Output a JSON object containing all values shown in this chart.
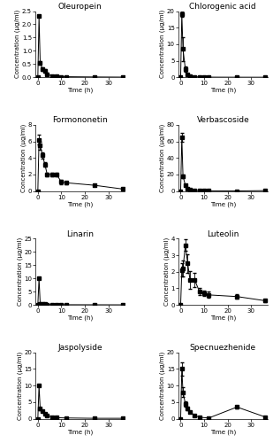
{
  "panels": [
    {
      "title": "Oleuropein",
      "ylabel": "Concentration (μg/ml)",
      "xlabel": "Time (h)",
      "ylim": [
        0,
        2.5
      ],
      "yticks": [
        0.0,
        0.5,
        1.0,
        1.5,
        2.0,
        2.5
      ],
      "xticks": [
        0,
        10,
        20,
        30
      ],
      "xlim": [
        -1,
        37
      ],
      "time": [
        0,
        0.5,
        1,
        2,
        3,
        4,
        6,
        8,
        10,
        12,
        24,
        36
      ],
      "mean": [
        0.0,
        2.3,
        0.55,
        0.3,
        0.25,
        0.12,
        0.05,
        0.03,
        0.02,
        0.02,
        0.01,
        0.005
      ],
      "sd": [
        0.0,
        0.0,
        0.06,
        0.07,
        0.07,
        0.05,
        0.02,
        0.01,
        0.005,
        0.005,
        0.005,
        0.0
      ]
    },
    {
      "title": "Chlorogenic acid",
      "ylabel": "Concentration (μg/ml)",
      "xlabel": "Time (h)",
      "ylim": [
        0,
        20
      ],
      "yticks": [
        0,
        5,
        10,
        15,
        20
      ],
      "xticks": [
        0,
        10,
        20,
        30
      ],
      "xlim": [
        -1,
        37
      ],
      "time": [
        0,
        0.5,
        1,
        2,
        3,
        4,
        6,
        8,
        10,
        12,
        24,
        36
      ],
      "mean": [
        0.0,
        19.0,
        8.5,
        2.5,
        0.8,
        0.35,
        0.15,
        0.08,
        0.05,
        0.03,
        0.01,
        0.005
      ],
      "sd": [
        0.0,
        0.8,
        3.5,
        0.8,
        0.2,
        0.08,
        0.04,
        0.02,
        0.01,
        0.01,
        0.005,
        0.002
      ]
    },
    {
      "title": "Formononetin",
      "ylabel": "Concentration (μg/ml)",
      "xlabel": "Time (h)",
      "ylim": [
        0,
        8
      ],
      "yticks": [
        0,
        2,
        4,
        6,
        8
      ],
      "xticks": [
        0,
        10,
        20,
        30
      ],
      "xlim": [
        -1,
        37
      ],
      "time": [
        0,
        0.5,
        1,
        2,
        3,
        4,
        6,
        8,
        10,
        12,
        24,
        36
      ],
      "mean": [
        0.0,
        6.2,
        5.5,
        4.3,
        3.2,
        2.0,
        2.0,
        2.0,
        1.1,
        1.0,
        0.7,
        0.25
      ],
      "sd": [
        0.0,
        0.6,
        0.5,
        0.4,
        0.25,
        0.2,
        0.2,
        0.2,
        0.3,
        0.15,
        0.1,
        0.05
      ]
    },
    {
      "title": "Verbascoside",
      "ylabel": "Concentration (μg/ml)",
      "xlabel": "Time (h)",
      "ylim": [
        0,
        80
      ],
      "yticks": [
        0,
        20,
        40,
        60,
        80
      ],
      "xticks": [
        0,
        10,
        20,
        30
      ],
      "xlim": [
        -1,
        37
      ],
      "time": [
        0,
        0.5,
        1,
        2,
        3,
        4,
        6,
        8,
        10,
        12,
        24,
        36
      ],
      "mean": [
        0.0,
        65.0,
        18.0,
        7.0,
        3.0,
        1.5,
        0.8,
        0.5,
        0.3,
        0.2,
        0.1,
        0.5
      ],
      "sd": [
        0.0,
        5.0,
        2.0,
        0.8,
        0.4,
        0.2,
        0.1,
        0.08,
        0.05,
        0.04,
        0.03,
        0.15
      ]
    },
    {
      "title": "Linarin",
      "ylabel": "Concentration (μg/ml)",
      "xlabel": "Time (h)",
      "ylim": [
        0,
        25
      ],
      "yticks": [
        0,
        5,
        10,
        15,
        20,
        25
      ],
      "xticks": [
        0,
        10,
        20,
        30
      ],
      "xlim": [
        -1,
        37
      ],
      "time": [
        0,
        0.5,
        1,
        2,
        3,
        4,
        6,
        8,
        10,
        12,
        24,
        36
      ],
      "mean": [
        0.0,
        10.0,
        0.5,
        0.3,
        0.2,
        0.15,
        0.1,
        0.08,
        0.06,
        0.05,
        0.03,
        0.01
      ],
      "sd": [
        0.0,
        0.0,
        0.12,
        0.07,
        0.05,
        0.04,
        0.03,
        0.02,
        0.015,
        0.01,
        0.008,
        0.005
      ]
    },
    {
      "title": "Luteolin",
      "ylabel": "Concentration (μg/ml)",
      "xlabel": "Time (h)",
      "ylim": [
        0,
        4
      ],
      "yticks": [
        0,
        1,
        2,
        3,
        4
      ],
      "xticks": [
        0,
        10,
        20,
        30
      ],
      "xlim": [
        -1,
        37
      ],
      "time": [
        0,
        0.5,
        1,
        2,
        3,
        4,
        6,
        8,
        10,
        12,
        24,
        36
      ],
      "mean": [
        0.0,
        2.1,
        2.2,
        3.6,
        2.5,
        1.5,
        1.5,
        0.8,
        0.7,
        0.6,
        0.5,
        0.25
      ],
      "sd": [
        0.0,
        0.4,
        0.5,
        0.35,
        0.55,
        0.55,
        0.45,
        0.2,
        0.15,
        0.18,
        0.12,
        0.08
      ]
    },
    {
      "title": "Jaspolyside",
      "ylabel": "Concentration (μg/ml)",
      "xlabel": "Time (h)",
      "ylim": [
        0,
        20
      ],
      "yticks": [
        0,
        5,
        10,
        15,
        20
      ],
      "xticks": [
        0,
        10,
        20,
        30
      ],
      "xlim": [
        -1,
        37
      ],
      "time": [
        0,
        0.5,
        1,
        2,
        3,
        4,
        6,
        8,
        12,
        24,
        36
      ],
      "mean": [
        0.0,
        10.0,
        3.0,
        2.3,
        1.5,
        1.0,
        0.5,
        0.3,
        0.2,
        0.1,
        0.1
      ],
      "sd": [
        0.0,
        0.0,
        0.4,
        0.3,
        0.25,
        0.15,
        0.08,
        0.05,
        0.04,
        0.03,
        0.02
      ]
    },
    {
      "title": "Specnuezhenide",
      "ylabel": "Concentration (μg/ml)",
      "xlabel": "Time (h)",
      "ylim": [
        0,
        20
      ],
      "yticks": [
        0,
        5,
        10,
        15,
        20
      ],
      "xticks": [
        0,
        10,
        20,
        30
      ],
      "xlim": [
        -1,
        37
      ],
      "time": [
        0,
        0.5,
        1,
        2,
        3,
        4,
        6,
        8,
        12,
        24,
        36
      ],
      "mean": [
        0.0,
        15.0,
        8.0,
        4.5,
        3.0,
        2.0,
        1.0,
        0.4,
        0.2,
        3.5,
        0.5
      ],
      "sd": [
        0.0,
        2.0,
        1.5,
        0.8,
        0.5,
        0.3,
        0.15,
        0.08,
        0.04,
        0.5,
        0.1
      ]
    }
  ],
  "line_color": "black",
  "marker": "s",
  "markersize": 2.5,
  "linewidth": 0.7,
  "capsize": 1.5,
  "elinewidth": 0.6,
  "title_fontsize": 6.5,
  "label_fontsize": 5,
  "tick_fontsize": 5
}
